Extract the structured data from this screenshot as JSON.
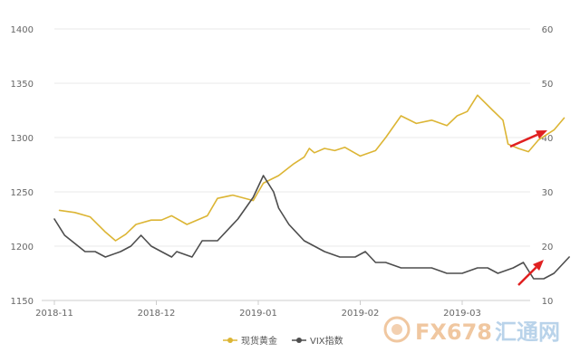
{
  "chart_data": {
    "type": "line",
    "x_ticks": [
      "2018-11",
      "2018-12",
      "2019-01",
      "2019-02",
      "2019-03"
    ],
    "y_left": {
      "ticks": [
        1150,
        1200,
        1250,
        1300,
        1350,
        1400
      ],
      "range": [
        1150,
        1400
      ]
    },
    "y_right": {
      "ticks": [
        10,
        20,
        30,
        40,
        50,
        60
      ],
      "range": [
        10,
        60
      ]
    },
    "grid": "horizontal",
    "legend_position": "bottom-center",
    "series": [
      {
        "name": "现货黄金",
        "axis": "left",
        "color": "#dcb534",
        "x": [
          0.05,
          0.2,
          0.35,
          0.5,
          0.6,
          0.7,
          0.8,
          0.95,
          1.05,
          1.15,
          1.3,
          1.5,
          1.6,
          1.75,
          1.95,
          2.05,
          2.2,
          2.35,
          2.45,
          2.5,
          2.55,
          2.65,
          2.75,
          2.85,
          3.0,
          3.15,
          3.25,
          3.4,
          3.55,
          3.7,
          3.85,
          3.95,
          4.05,
          4.15,
          4.3,
          4.4,
          4.45,
          4.55,
          4.65,
          4.75,
          4.9,
          5.0
        ],
        "y": [
          1233,
          1231,
          1227,
          1213,
          1205,
          1211,
          1220,
          1224,
          1224,
          1228,
          1220,
          1228,
          1244,
          1247,
          1242,
          1258,
          1265,
          1276,
          1282,
          1290,
          1286,
          1290,
          1288,
          1291,
          1283,
          1288,
          1300,
          1320,
          1313,
          1316,
          1311,
          1320,
          1324,
          1339,
          1325,
          1316,
          1294,
          1290,
          1287,
          1298,
          1307,
          1318
        ]
      },
      {
        "name": "VIX指数",
        "axis": "right",
        "color": "#4d4d4d",
        "x": [
          0.0,
          0.1,
          0.3,
          0.4,
          0.5,
          0.65,
          0.75,
          0.85,
          0.95,
          1.05,
          1.15,
          1.2,
          1.35,
          1.45,
          1.6,
          1.8,
          1.95,
          2.05,
          2.15,
          2.2,
          2.3,
          2.45,
          2.55,
          2.65,
          2.8,
          2.95,
          3.05,
          3.15,
          3.25,
          3.4,
          3.55,
          3.7,
          3.85,
          4.0,
          4.15,
          4.25,
          4.35,
          4.5,
          4.6,
          4.7,
          4.8,
          4.9,
          5.05
        ],
        "y": [
          25,
          22,
          19,
          19,
          18,
          19,
          20,
          22,
          20,
          19,
          18,
          19,
          18,
          21,
          21,
          25,
          29,
          33,
          30,
          27,
          24,
          21,
          20,
          19,
          18,
          18,
          19,
          17,
          17,
          16,
          16,
          16,
          15,
          15,
          16,
          16,
          15,
          16,
          17,
          14,
          14,
          15,
          18
        ]
      }
    ]
  },
  "watermark": {
    "brand": "FX678",
    "cn": "汇通网"
  },
  "colors": {
    "annotation_arrow": "#e02020",
    "grid": "#e8e8e8",
    "axis": "#cccccc"
  }
}
